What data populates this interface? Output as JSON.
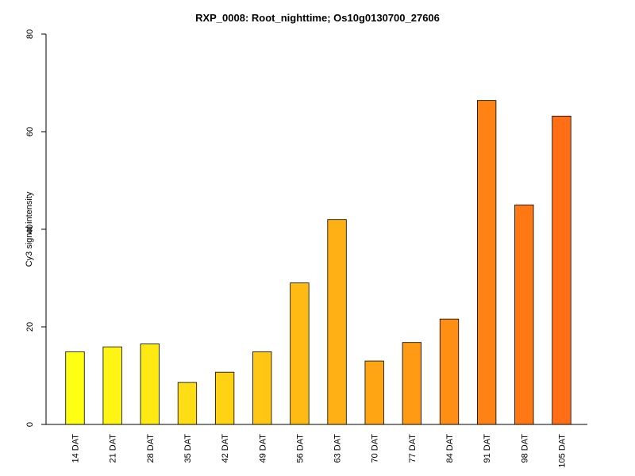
{
  "chart_data": {
    "type": "bar",
    "title": "RXP_0008: Root_nighttime; Os10g0130700_27606",
    "xlabel": "",
    "ylabel": "Cy3 signal intensity",
    "ylim": [
      0,
      80
    ],
    "yticks": [
      0,
      20,
      40,
      60,
      80
    ],
    "grid": false,
    "legend": "none",
    "categories": [
      "14 DAT",
      "21 DAT",
      "28 DAT",
      "35 DAT",
      "42 DAT",
      "49 DAT",
      "56 DAT",
      "63 DAT",
      "70 DAT",
      "77 DAT",
      "84 DAT",
      "91 DAT",
      "98 DAT",
      "105 DAT"
    ],
    "values": [
      14.9,
      15.9,
      16.5,
      8.6,
      10.7,
      14.9,
      29.0,
      42.0,
      13.0,
      16.8,
      21.6,
      66.4,
      45.0,
      63.2
    ],
    "colors": [
      "#ffff14",
      "#fff414",
      "#ffe914",
      "#ffdd14",
      "#ffd214",
      "#ffc714",
      "#ffbb14",
      "#ffb014",
      "#ffa514",
      "#ff9a14",
      "#ff8f14",
      "#ff8314",
      "#ff7814",
      "#ff6d14"
    ]
  }
}
